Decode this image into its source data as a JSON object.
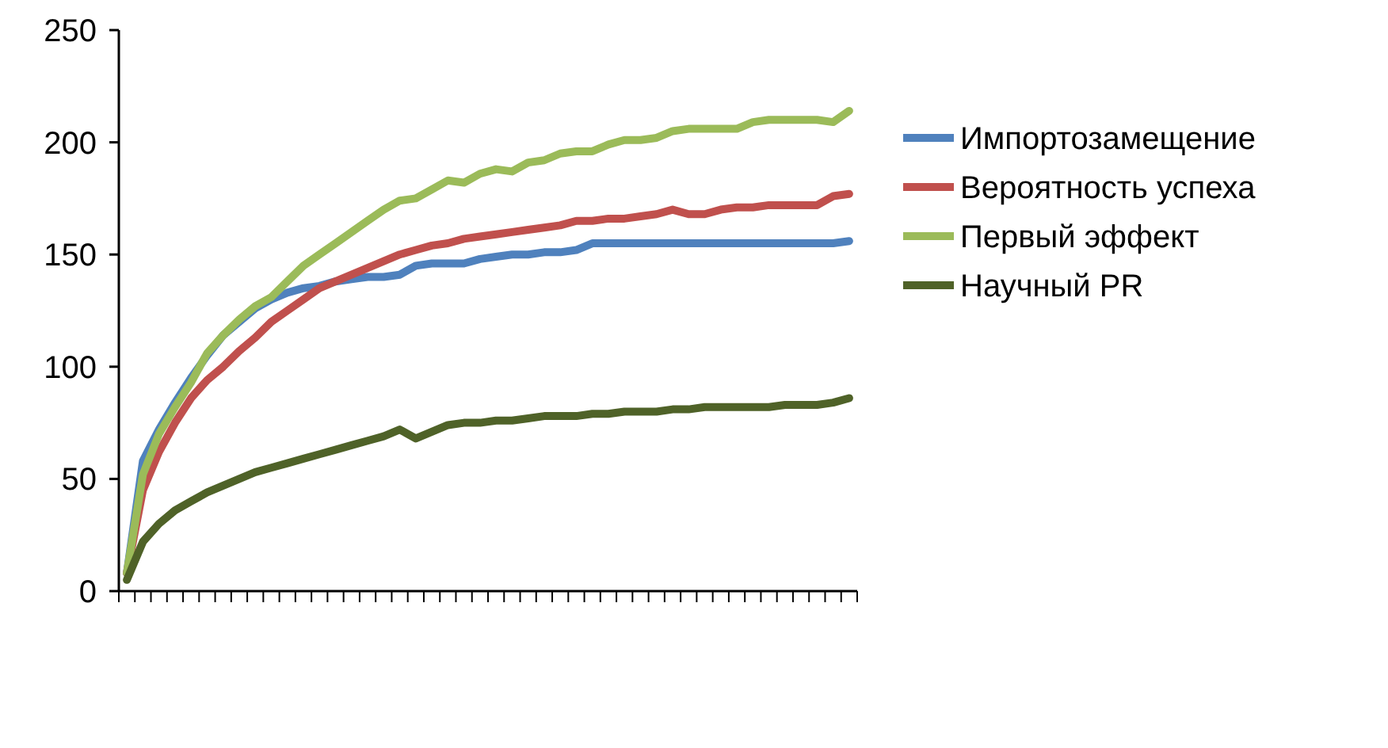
{
  "chart_data": {
    "type": "line",
    "categories": [
      null,
      null,
      null,
      null,
      null,
      null,
      null,
      null,
      null,
      null,
      null,
      null,
      null,
      null,
      null,
      null,
      null,
      null,
      null,
      null,
      null,
      null,
      null,
      null,
      null,
      null,
      null,
      null,
      null,
      null,
      null,
      null,
      null,
      null,
      null,
      null,
      null,
      null,
      null,
      null,
      null,
      null,
      null,
      null,
      null,
      null
    ],
    "series": [
      {
        "name": "Импортозамещение",
        "color": "#4f81bd",
        "values": [
          8,
          58,
          72,
          84,
          95,
          105,
          114,
          120,
          126,
          130,
          133,
          135,
          136,
          138,
          139,
          140,
          140,
          141,
          145,
          146,
          146,
          146,
          148,
          149,
          150,
          150,
          151,
          151,
          152,
          155,
          155,
          155,
          155,
          155,
          155,
          155,
          155,
          155,
          155,
          155,
          155,
          155,
          155,
          155,
          155,
          156
        ]
      },
      {
        "name": "Вероятность успеха",
        "color": "#c0504d",
        "values": [
          8,
          45,
          62,
          75,
          86,
          94,
          100,
          107,
          113,
          120,
          125,
          130,
          135,
          138,
          141,
          144,
          147,
          150,
          152,
          154,
          155,
          157,
          158,
          159,
          160,
          161,
          162,
          163,
          165,
          165,
          166,
          166,
          167,
          168,
          170,
          168,
          168,
          170,
          171,
          171,
          172,
          172,
          172,
          172,
          176,
          177
        ]
      },
      {
        "name": "Первый эффект",
        "color": "#9bbb59",
        "values": [
          8,
          52,
          70,
          82,
          93,
          106,
          114,
          121,
          127,
          131,
          138,
          145,
          150,
          155,
          160,
          165,
          170,
          174,
          175,
          179,
          183,
          182,
          186,
          188,
          187,
          191,
          192,
          195,
          196,
          196,
          199,
          201,
          201,
          202,
          205,
          206,
          206,
          206,
          206,
          209,
          210,
          210,
          210,
          210,
          209,
          214
        ]
      },
      {
        "name": "Научный PR",
        "color": "#4f6228",
        "values": [
          5,
          22,
          30,
          36,
          40,
          44,
          47,
          50,
          53,
          55,
          57,
          59,
          61,
          63,
          65,
          67,
          69,
          72,
          68,
          71,
          74,
          75,
          75,
          76,
          76,
          77,
          78,
          78,
          78,
          79,
          79,
          80,
          80,
          80,
          81,
          81,
          82,
          82,
          82,
          82,
          82,
          83,
          83,
          83,
          84,
          86
        ]
      }
    ],
    "ylim": [
      0,
      250
    ],
    "yticks": [
      0,
      50,
      100,
      150,
      200,
      250
    ],
    "grid": false,
    "legend": "right",
    "tick_labels": "y",
    "marker": "none",
    "line_style": "solid"
  }
}
